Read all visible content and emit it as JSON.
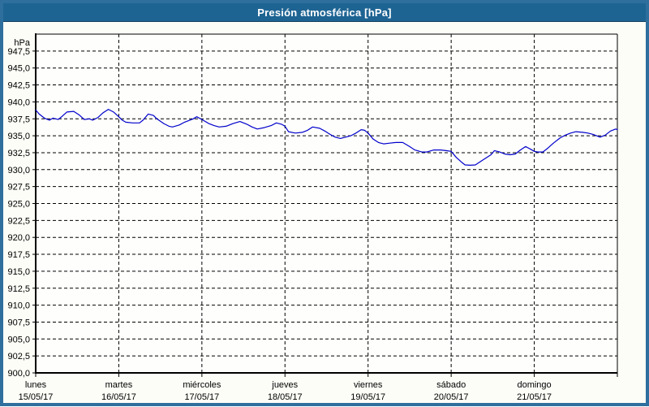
{
  "window": {
    "title": "Presión atmosférica [hPa]"
  },
  "colors": {
    "titlebar_bg": "#1e6493",
    "titlebar_text": "#ffffff",
    "frame_border": "#2e6f9e",
    "content_bg": "#fcfdf7",
    "plot_bg": "#fefefc",
    "line_color": "#0000cc",
    "grid_color": "#000000",
    "axis_text_color": "#000000"
  },
  "chart_data": {
    "type": "line",
    "title": "Presión atmosférica [hPa]",
    "y_unit_label": "hPa",
    "ylim": [
      900,
      950
    ],
    "ytick_step": 2.5,
    "grid": "dashed",
    "legend": "none",
    "decimal_separator": ",",
    "yticks": [
      {
        "value": 947.5,
        "label": "947,5"
      },
      {
        "value": 945.0,
        "label": "945,0"
      },
      {
        "value": 942.5,
        "label": "942,5"
      },
      {
        "value": 940.0,
        "label": "940,0"
      },
      {
        "value": 937.5,
        "label": "937,5"
      },
      {
        "value": 935.0,
        "label": "935,0"
      },
      {
        "value": 932.5,
        "label": "932,5"
      },
      {
        "value": 930.0,
        "label": "930,0"
      },
      {
        "value": 927.5,
        "label": "927,5"
      },
      {
        "value": 925.0,
        "label": "925,0"
      },
      {
        "value": 922.5,
        "label": "922,5"
      },
      {
        "value": 920.0,
        "label": "920,0"
      },
      {
        "value": 917.5,
        "label": "917,5"
      },
      {
        "value": 915.0,
        "label": "915,0"
      },
      {
        "value": 912.5,
        "label": "912,5"
      },
      {
        "value": 910.0,
        "label": "910,0"
      },
      {
        "value": 907.5,
        "label": "907,5"
      },
      {
        "value": 905.0,
        "label": "905,0"
      },
      {
        "value": 902.5,
        "label": "902,5"
      },
      {
        "value": 900.0,
        "label": "900,0"
      }
    ],
    "x_days": [
      {
        "name": "lunes",
        "date": "15/05/17"
      },
      {
        "name": "martes",
        "date": "16/05/17"
      },
      {
        "name": "miércoles",
        "date": "17/05/17"
      },
      {
        "name": "jueves",
        "date": "18/05/17"
      },
      {
        "name": "viernes",
        "date": "19/05/17"
      },
      {
        "name": "sábado",
        "date": "20/05/17"
      },
      {
        "name": "domingo",
        "date": "21/05/17"
      }
    ],
    "x_total_hours": 168,
    "hours_per_day": 24,
    "series": [
      {
        "name": "Presión atmosférica [hPa]",
        "color": "#0000cc",
        "points": [
          [
            0,
            938.8
          ],
          [
            1,
            938.2
          ],
          [
            2.5,
            937.6
          ],
          [
            4,
            937.3
          ],
          [
            5,
            937.6
          ],
          [
            6.5,
            937.4
          ],
          [
            7.5,
            937.8
          ],
          [
            9,
            938.5
          ],
          [
            11,
            938.6
          ],
          [
            12.5,
            938.1
          ],
          [
            14,
            937.4
          ],
          [
            15.5,
            937.5
          ],
          [
            16.5,
            937.3
          ],
          [
            18,
            937.7
          ],
          [
            19.5,
            938.4
          ],
          [
            21,
            938.9
          ],
          [
            22.5,
            938.5
          ],
          [
            24,
            937.8
          ],
          [
            25,
            937.3
          ],
          [
            26,
            937.0
          ],
          [
            28,
            936.9
          ],
          [
            30,
            936.9
          ],
          [
            31,
            937.3
          ],
          [
            32.5,
            938.2
          ],
          [
            34,
            938.0
          ],
          [
            35,
            937.5
          ],
          [
            37,
            936.8
          ],
          [
            38.5,
            936.4
          ],
          [
            39.5,
            936.3
          ],
          [
            41.5,
            936.6
          ],
          [
            43,
            937.0
          ],
          [
            45.5,
            937.5
          ],
          [
            46.5,
            937.8
          ],
          [
            48,
            937.4
          ],
          [
            50,
            936.8
          ],
          [
            51.5,
            936.5
          ],
          [
            53,
            936.3
          ],
          [
            55,
            936.4
          ],
          [
            57,
            936.8
          ],
          [
            59,
            937.1
          ],
          [
            61,
            936.7
          ],
          [
            62.5,
            936.3
          ],
          [
            64,
            936.0
          ],
          [
            66,
            936.2
          ],
          [
            68,
            936.5
          ],
          [
            69.5,
            936.9
          ],
          [
            71,
            936.7
          ],
          [
            72,
            936.4
          ],
          [
            73,
            935.6
          ],
          [
            75,
            935.4
          ],
          [
            77,
            935.5
          ],
          [
            78.5,
            935.8
          ],
          [
            80,
            936.3
          ],
          [
            82,
            936.1
          ],
          [
            83.5,
            935.7
          ],
          [
            85,
            935.2
          ],
          [
            86.5,
            934.8
          ],
          [
            88,
            934.6
          ],
          [
            89.5,
            934.8
          ],
          [
            91,
            935.0
          ],
          [
            92.5,
            935.4
          ],
          [
            94,
            935.9
          ],
          [
            95,
            935.8
          ],
          [
            96,
            935.4
          ],
          [
            97.5,
            934.5
          ],
          [
            99,
            934.0
          ],
          [
            100.5,
            933.8
          ],
          [
            102,
            933.9
          ],
          [
            104,
            934.0
          ],
          [
            106,
            934.0
          ],
          [
            108,
            933.4
          ],
          [
            109.5,
            932.9
          ],
          [
            111.5,
            932.6
          ],
          [
            113,
            932.6
          ],
          [
            115,
            932.9
          ],
          [
            117,
            932.9
          ],
          [
            118.5,
            932.8
          ],
          [
            120,
            932.7
          ],
          [
            121.5,
            931.8
          ],
          [
            123,
            931.1
          ],
          [
            124,
            930.7
          ],
          [
            125.5,
            930.65
          ],
          [
            127,
            930.7
          ],
          [
            128.5,
            931.2
          ],
          [
            130,
            931.7
          ],
          [
            131.5,
            932.2
          ],
          [
            132.5,
            932.8
          ],
          [
            134,
            932.6
          ],
          [
            135.5,
            932.3
          ],
          [
            137,
            932.2
          ],
          [
            138.5,
            932.3
          ],
          [
            140,
            932.9
          ],
          [
            141.5,
            933.4
          ],
          [
            143,
            933.0
          ],
          [
            144,
            932.7
          ],
          [
            145,
            932.6
          ],
          [
            146.5,
            932.6
          ],
          [
            148,
            933.2
          ],
          [
            149.5,
            933.9
          ],
          [
            151.5,
            934.7
          ],
          [
            153,
            935.1
          ],
          [
            154.5,
            935.4
          ],
          [
            156,
            935.6
          ],
          [
            158,
            935.5
          ],
          [
            159.5,
            935.4
          ],
          [
            161,
            935.2
          ],
          [
            163,
            934.8
          ],
          [
            164.5,
            935.1
          ],
          [
            166,
            935.7
          ],
          [
            167.5,
            936.0
          ],
          [
            168,
            935.9
          ]
        ]
      }
    ]
  }
}
